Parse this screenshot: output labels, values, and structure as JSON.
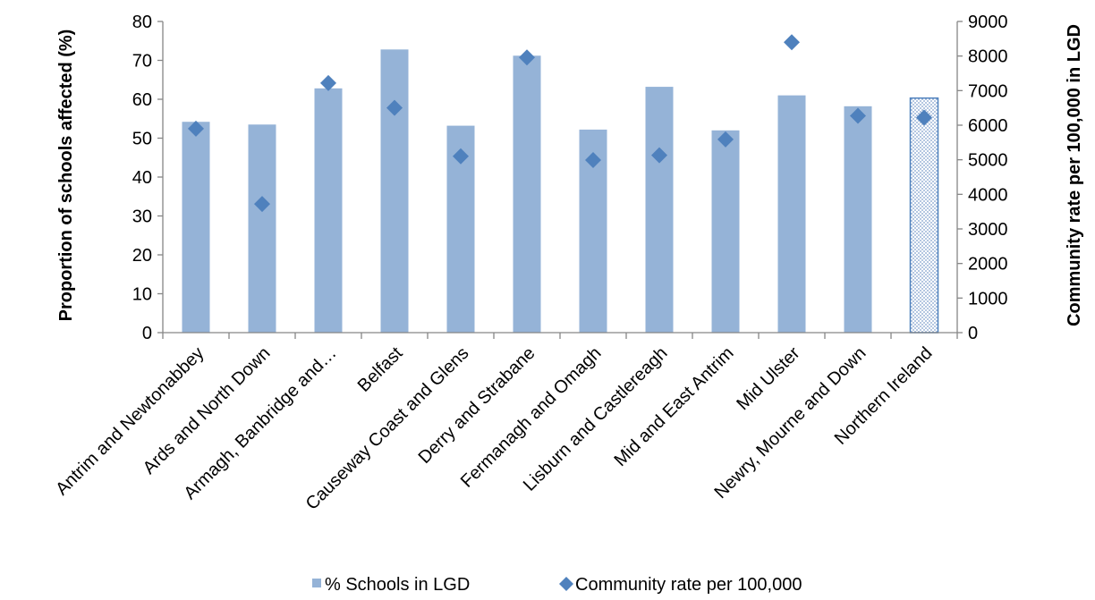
{
  "chart_data": {
    "type": "bar",
    "categories": [
      "Antrim and Newtonabbey",
      "Ards and North Down",
      "Armagh, Banbridge and…",
      "Belfast",
      "Causeway Coast and Glens",
      "Derry and Strabane",
      "Fermanagh and Omagh",
      "Lisburn and Castlereagh",
      "Mid and East Antrim",
      "Mid Ulster",
      "Newry, Mourne and Down",
      "Northern Ireland"
    ],
    "series": [
      {
        "name": "% Schools in LGD",
        "type": "bar",
        "axis": "left",
        "color": "#95b3d7",
        "highlight_last": true,
        "values": [
          54.2,
          53.5,
          62.8,
          72.8,
          53.2,
          71.2,
          52.2,
          63.2,
          52.0,
          61.0,
          58.2,
          60.3
        ]
      },
      {
        "name": "Community rate per 100,000",
        "type": "scatter",
        "marker": "diamond",
        "axis": "right",
        "color": "#4f81bd",
        "values": [
          5900,
          3720,
          7220,
          6500,
          5100,
          7960,
          4990,
          5130,
          5590,
          8400,
          6270,
          6220
        ]
      }
    ],
    "ylabel": "Proportion of schools affected (%)",
    "y2label": "Community rate per 100,000 in LGD",
    "ylim": [
      0,
      80
    ],
    "y2lim": [
      0,
      9000
    ],
    "yticks": [
      "0",
      "10",
      "20",
      "30",
      "40",
      "50",
      "60",
      "70",
      "80"
    ],
    "y2ticks": [
      "0",
      "1000",
      "2000",
      "3000",
      "4000",
      "5000",
      "6000",
      "7000",
      "8000",
      "9000"
    ],
    "grid": false,
    "legend_position": "bottom"
  }
}
